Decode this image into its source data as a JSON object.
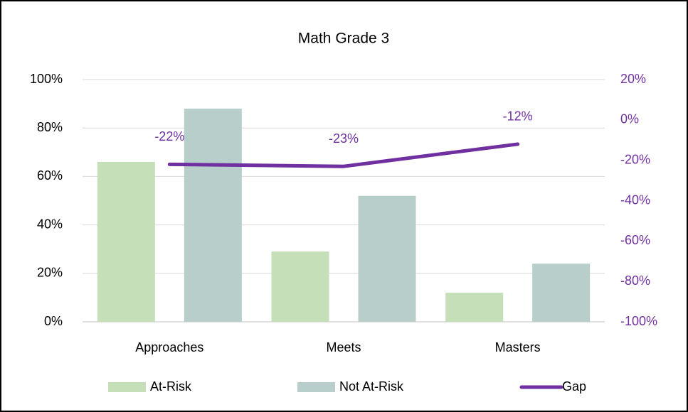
{
  "chart_data": {
    "type": "bar",
    "title": "Math Grade 3",
    "categories": [
      "Approaches",
      "Meets",
      "Masters"
    ],
    "series": [
      {
        "name": "At-Risk",
        "color": "#c5dfb9",
        "values": [
          66,
          29,
          12
        ]
      },
      {
        "name": "Not At-Risk",
        "color": "#b8cecb",
        "values": [
          88,
          52,
          24
        ]
      },
      {
        "name": "Gap",
        "type": "line",
        "axis": "y2",
        "color": "#7030a0",
        "values": [
          -22,
          -23,
          -12
        ],
        "value_labels": [
          "-22%",
          "-23%",
          "-12%"
        ]
      }
    ],
    "ylim": [
      0,
      100
    ],
    "yticks": [
      {
        "value": 0,
        "label": "0%"
      },
      {
        "value": 20,
        "label": "20%"
      },
      {
        "value": 40,
        "label": "40%"
      },
      {
        "value": 60,
        "label": "60%"
      },
      {
        "value": 80,
        "label": "80%"
      },
      {
        "value": 100,
        "label": "100%"
      }
    ],
    "y2lim": [
      -100,
      20
    ],
    "y2ticks": [
      {
        "value": -100,
        "label": "-100%"
      },
      {
        "value": -80,
        "label": "-80%"
      },
      {
        "value": -60,
        "label": "-60%"
      },
      {
        "value": -40,
        "label": "-40%"
      },
      {
        "value": -20,
        "label": "-20%"
      },
      {
        "value": 0,
        "label": "0%"
      },
      {
        "value": 20,
        "label": "20%"
      }
    ],
    "grid": true,
    "legend": "bottom"
  }
}
